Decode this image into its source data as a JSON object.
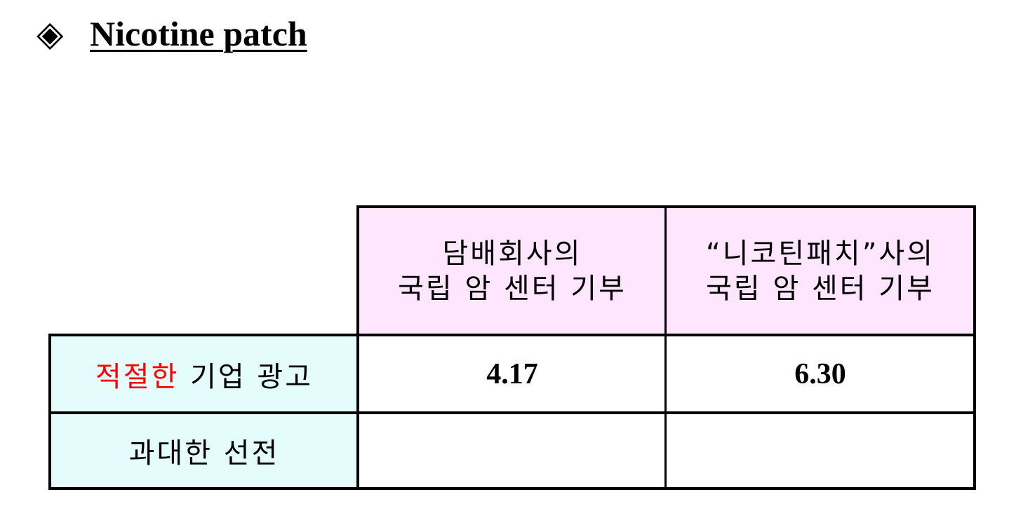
{
  "title": {
    "icon": "◈",
    "text": "Nicotine patch"
  },
  "table": {
    "columns": [
      {
        "line1": "담배회사의",
        "line2": "국립 암 센터 기부"
      },
      {
        "line1": "“니코틴패치”사의",
        "line2": "국립 암 센터 기부"
      }
    ],
    "rows": [
      {
        "label_accent": "적절한",
        "label_rest": " 기업 광고",
        "values": [
          "4.17",
          "6.30"
        ]
      },
      {
        "label": "과대한 선전",
        "values": [
          "",
          ""
        ]
      }
    ]
  },
  "colors": {
    "header_bg": "#ffe6ff",
    "row_label_bg": "#e4fcfc",
    "accent_text": "#ff0000"
  }
}
